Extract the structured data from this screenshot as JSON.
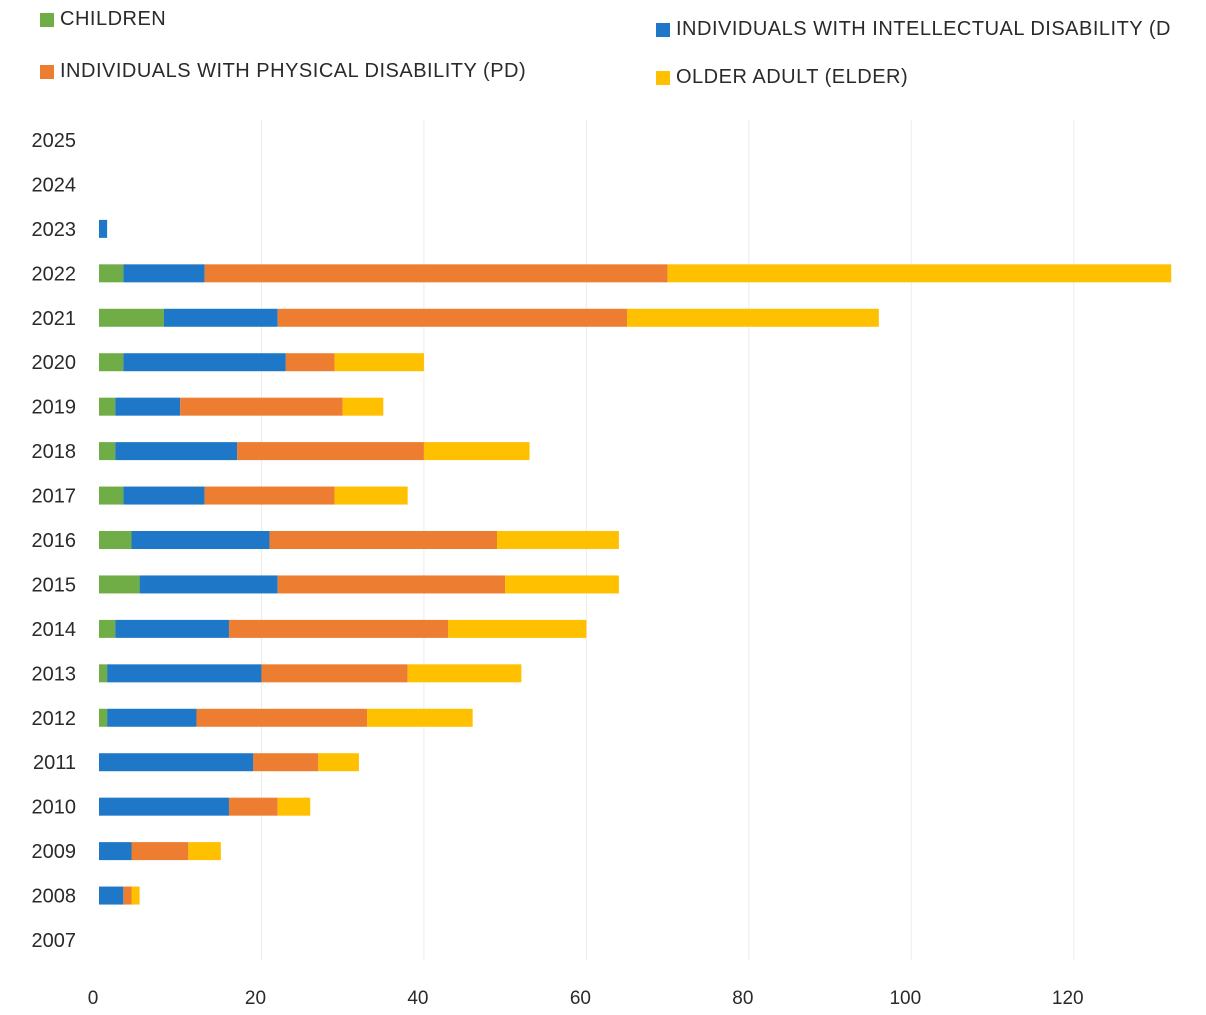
{
  "chart_data": {
    "type": "bar",
    "orientation": "horizontal",
    "stacked": true,
    "categories": [
      "2025",
      "2024",
      "2023",
      "2022",
      "2021",
      "2020",
      "2019",
      "2018",
      "2017",
      "2016",
      "2015",
      "2014",
      "2013",
      "2012",
      "2011",
      "2010",
      "2009",
      "2008",
      "2007"
    ],
    "series": [
      {
        "name": "CHILDREN",
        "color": "#70ad47",
        "values": [
          0,
          0,
          0,
          3,
          8,
          3,
          2,
          2,
          3,
          4,
          5,
          2,
          1,
          1,
          0,
          0,
          0,
          0,
          0
        ]
      },
      {
        "name": "INDIVIDUALS WITH INTELLECTUAL DISABILITY (D",
        "color": "#1f77c8",
        "values": [
          0,
          0,
          1,
          10,
          14,
          20,
          8,
          15,
          10,
          17,
          17,
          14,
          19,
          11,
          19,
          16,
          4,
          3,
          0
        ]
      },
      {
        "name": "INDIVIDUALS WITH PHYSICAL DISABILITY (PD)",
        "color": "#ed7d31",
        "values": [
          0,
          0,
          0,
          57,
          43,
          6,
          20,
          23,
          16,
          28,
          28,
          27,
          18,
          21,
          8,
          6,
          7,
          1,
          0
        ]
      },
      {
        "name": "OLDER ADULT (ELDER)",
        "color": "#ffc000",
        "values": [
          0,
          0,
          0,
          62,
          31,
          11,
          5,
          13,
          9,
          15,
          14,
          17,
          14,
          13,
          5,
          4,
          4,
          1,
          0
        ]
      }
    ],
    "xlim": [
      0,
      130
    ],
    "xticks": [
      0,
      20,
      40,
      60,
      80,
      100,
      120
    ],
    "xticklabels": [
      "0",
      "20",
      "40",
      "60",
      "80",
      "100",
      "120"
    ],
    "grid": true,
    "legend_position": "top"
  }
}
